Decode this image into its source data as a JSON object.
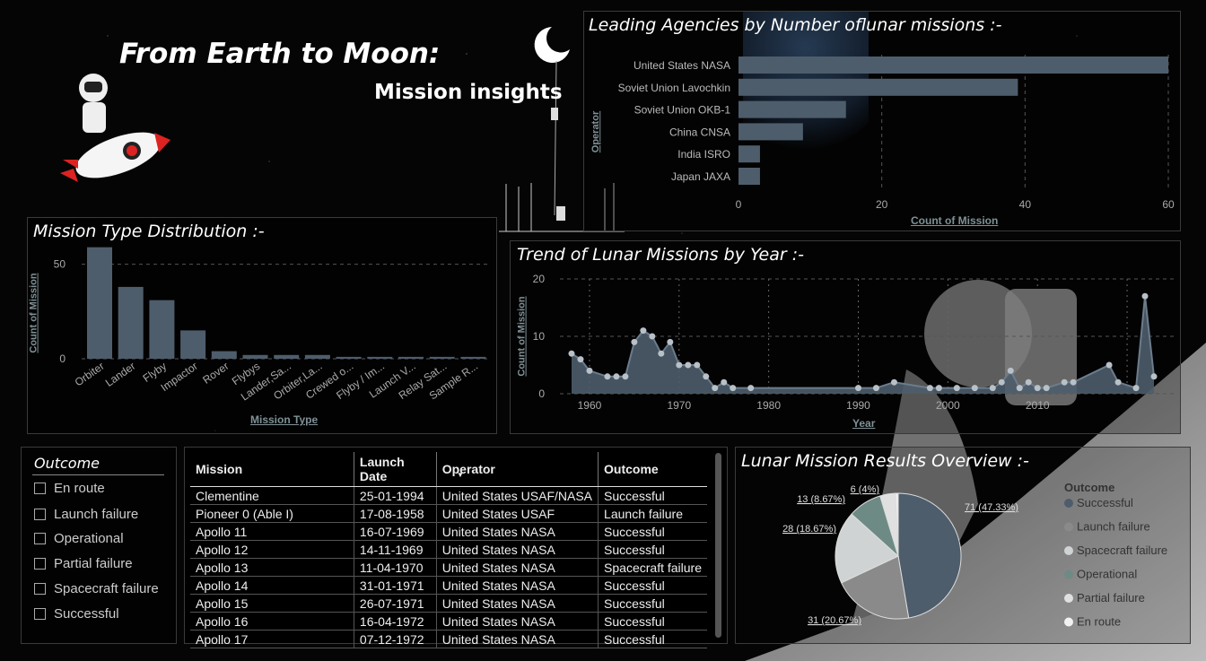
{
  "header": {
    "title": "From Earth to Moon:",
    "subtitle": "Mission insights"
  },
  "agencies": {
    "title": "Leading Agencies by Number oflunar missions :-",
    "ylabel": "Operator",
    "xlabel": "Count of Mission",
    "ticks": [
      "0",
      "20",
      "40",
      "60"
    ]
  },
  "mission_type": {
    "title": "Mission Type Distribution :-",
    "ylabel": "Count of Mission",
    "xlabel": "Mission Type",
    "ticks": [
      "0",
      "50"
    ]
  },
  "trend": {
    "title": "Trend of Lunar Missions by Year :-",
    "ylabel": "Count of Mission",
    "xlabel": "Year",
    "yticks": [
      "0",
      "10",
      "20"
    ],
    "xticks": [
      "1960",
      "1970",
      "1980",
      "1990",
      "2000",
      "2010"
    ]
  },
  "outcome_filter": {
    "title": "Outcome",
    "items": [
      "En route",
      "Launch failure",
      "Operational",
      "Partial failure",
      "Spacecraft failure",
      "Successful"
    ]
  },
  "table": {
    "headers": [
      "Mission",
      "Launch Date",
      "Operator",
      "Outcome"
    ],
    "rows": [
      [
        "Clementine",
        "25-01-1994",
        "United States USAF/NASA",
        "Successful"
      ],
      [
        "Pioneer 0 (Able I)",
        "17-08-1958",
        "United States USAF",
        "Launch failure"
      ],
      [
        "Apollo 11",
        "16-07-1969",
        "United States NASA",
        "Successful"
      ],
      [
        "Apollo 12",
        "14-11-1969",
        "United States NASA",
        "Successful"
      ],
      [
        "Apollo 13",
        "11-04-1970",
        "United States NASA",
        "Spacecraft failure"
      ],
      [
        "Apollo 14",
        "31-01-1971",
        "United States NASA",
        "Successful"
      ],
      [
        "Apollo 15",
        "26-07-1971",
        "United States NASA",
        "Successful"
      ],
      [
        "Apollo 16",
        "16-04-1972",
        "United States NASA",
        "Successful"
      ],
      [
        "Apollo 17",
        "07-12-1972",
        "United States NASA",
        "Successful"
      ]
    ]
  },
  "results": {
    "title": "Lunar Mission Results Overview :-",
    "legend_title": "Outcome",
    "legend": [
      "Successful",
      "Launch failure",
      "Spacecraft failure",
      "Operational",
      "Partial failure",
      "En route"
    ],
    "labels": [
      "71 (47.33%)",
      "31 (20.67%)",
      "28 (18.67%)",
      "13 (8.67%)",
      "6 (4%)"
    ]
  },
  "colors": {
    "bar": "#4e5d6c",
    "line": "#4e5d6c",
    "point": "#b8c0c8"
  },
  "chart_data": [
    {
      "type": "bar",
      "orientation": "horizontal",
      "title": "Leading Agencies by Number oflunar missions :-",
      "xlabel": "Count of Mission",
      "ylabel": "Operator",
      "categories": [
        "United States NASA",
        "Soviet Union Lavochkin",
        "Soviet Union OKB-1",
        "China CNSA",
        "India ISRO",
        "Japan JAXA"
      ],
      "values": [
        60,
        39,
        15,
        9,
        3,
        3
      ],
      "xlim": [
        0,
        60
      ]
    },
    {
      "type": "bar",
      "title": "Mission Type Distribution :-",
      "xlabel": "Mission Type",
      "ylabel": "Count of Mission",
      "categories": [
        "Orbiter",
        "Lander",
        "Flyby",
        "Impactor",
        "Rover",
        "Flybys",
        "Lander,Sa...",
        "Orbiter,La...",
        "Crewed o...",
        "Flyby / Im...",
        "Launch V...",
        "Relay Sat...",
        "Sample R..."
      ],
      "values": [
        59,
        38,
        31,
        15,
        4,
        2,
        2,
        2,
        1,
        1,
        1,
        1,
        1
      ],
      "ylim": [
        0,
        65
      ]
    },
    {
      "type": "area",
      "title": "Trend of Lunar Missions by Year :-",
      "xlabel": "Year",
      "ylabel": "Count of Mission",
      "x": [
        1958,
        1959,
        1960,
        1962,
        1963,
        1964,
        1965,
        1966,
        1967,
        1968,
        1969,
        1970,
        1971,
        1972,
        1973,
        1974,
        1975,
        1976,
        1978,
        1990,
        1992,
        1994,
        1998,
        1999,
        2001,
        2003,
        2005,
        2006,
        2007,
        2008,
        2009,
        2010,
        2011,
        2013,
        2014,
        2018,
        2019,
        2021,
        2022,
        2023
      ],
      "y": [
        7,
        6,
        4,
        3,
        3,
        3,
        9,
        11,
        10,
        7,
        9,
        5,
        5,
        5,
        3,
        1,
        2,
        1,
        1,
        1,
        1,
        2,
        1,
        1,
        1,
        1,
        1,
        2,
        4,
        1,
        2,
        1,
        1,
        2,
        2,
        5,
        2,
        1,
        17,
        3
      ],
      "ylim": [
        0,
        20
      ],
      "xlim": [
        1957,
        2024
      ]
    },
    {
      "type": "pie",
      "title": "Lunar Mission Results Overview :-",
      "categories": [
        "Successful",
        "Launch failure",
        "Spacecraft failure",
        "Operational",
        "Partial failure",
        "En route"
      ],
      "values": [
        71,
        31,
        28,
        13,
        6,
        1
      ],
      "colors": [
        "#4e5d6c",
        "#8a8a8a",
        "#d0d3d4",
        "#6e8a84",
        "#e0e0e0",
        "#f2f2f2"
      ]
    }
  ]
}
